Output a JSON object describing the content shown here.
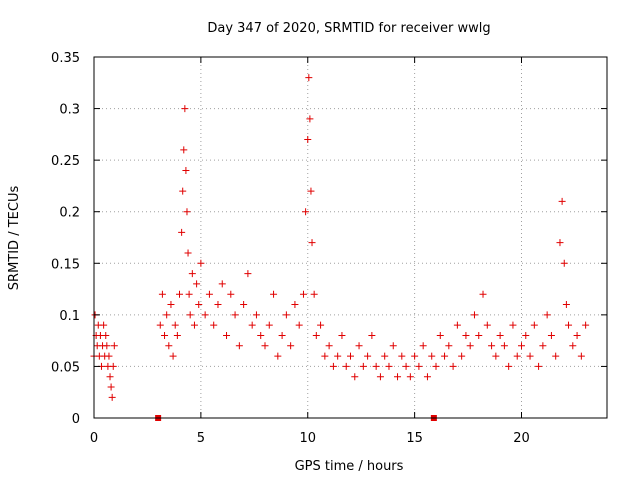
{
  "chart_data": {
    "type": "scatter",
    "title": "Day 347 of 2020, SRMTID for receiver wwlg",
    "xlabel": "GPS time / hours",
    "ylabel": "SRMTID / TECUs",
    "xlim": [
      0,
      24
    ],
    "ylim": [
      0,
      0.35
    ],
    "xticks": [
      0,
      5,
      10,
      15,
      20
    ],
    "xtick_labels": [
      "0",
      "5",
      "10",
      "15",
      "20"
    ],
    "yticks": [
      0,
      0.05,
      0.1,
      0.15,
      0.2,
      0.25,
      0.3,
      0.35
    ],
    "ytick_labels": [
      "0",
      "0.05",
      "0.1",
      "0.15",
      "0.2",
      "0.25",
      "0.3",
      "0.35"
    ],
    "grid": true,
    "marker_color": "#e00000",
    "series": [
      {
        "name": "SRMTID",
        "marker": "plus",
        "x": [
          0.0,
          0.05,
          0.1,
          0.15,
          0.2,
          0.25,
          0.3,
          0.35,
          0.4,
          0.45,
          0.5,
          0.55,
          0.6,
          0.65,
          0.7,
          0.75,
          0.8,
          0.85,
          0.9,
          0.95,
          3.1,
          3.2,
          3.3,
          3.4,
          3.5,
          3.6,
          3.7,
          3.8,
          3.9,
          4.0,
          4.1,
          4.15,
          4.2,
          4.25,
          4.3,
          4.35,
          4.4,
          4.45,
          4.5,
          4.6,
          4.7,
          4.8,
          4.9,
          5.0,
          5.2,
          5.4,
          5.6,
          5.8,
          6.0,
          6.2,
          6.4,
          6.6,
          6.8,
          7.0,
          7.2,
          7.4,
          7.6,
          7.8,
          8.0,
          8.2,
          8.4,
          8.6,
          8.8,
          9.0,
          9.2,
          9.4,
          9.6,
          9.8,
          9.9,
          10.0,
          10.05,
          10.1,
          10.15,
          10.2,
          10.3,
          10.4,
          10.6,
          10.8,
          11.0,
          11.2,
          11.4,
          11.6,
          11.8,
          12.0,
          12.2,
          12.4,
          12.6,
          12.8,
          13.0,
          13.2,
          13.4,
          13.6,
          13.8,
          14.0,
          14.2,
          14.4,
          14.6,
          14.8,
          15.0,
          15.2,
          15.4,
          15.6,
          15.8,
          16.0,
          16.2,
          16.4,
          16.6,
          16.8,
          17.0,
          17.2,
          17.4,
          17.6,
          17.8,
          18.0,
          18.2,
          18.4,
          18.6,
          18.8,
          19.0,
          19.2,
          19.4,
          19.6,
          19.8,
          20.0,
          20.2,
          20.4,
          20.6,
          20.8,
          21.0,
          21.2,
          21.4,
          21.6,
          21.8,
          21.9,
          22.0,
          22.1,
          22.2,
          22.4,
          22.6,
          22.8,
          23.0
        ],
        "y": [
          0.06,
          0.1,
          0.08,
          0.07,
          0.09,
          0.06,
          0.08,
          0.05,
          0.07,
          0.09,
          0.06,
          0.08,
          0.07,
          0.05,
          0.06,
          0.04,
          0.03,
          0.02,
          0.05,
          0.07,
          0.09,
          0.12,
          0.08,
          0.1,
          0.07,
          0.11,
          0.06,
          0.09,
          0.08,
          0.12,
          0.18,
          0.22,
          0.26,
          0.3,
          0.24,
          0.2,
          0.16,
          0.12,
          0.1,
          0.14,
          0.09,
          0.13,
          0.11,
          0.15,
          0.1,
          0.12,
          0.09,
          0.11,
          0.13,
          0.08,
          0.12,
          0.1,
          0.07,
          0.11,
          0.14,
          0.09,
          0.1,
          0.08,
          0.07,
          0.09,
          0.12,
          0.06,
          0.08,
          0.1,
          0.07,
          0.11,
          0.09,
          0.12,
          0.2,
          0.27,
          0.33,
          0.29,
          0.22,
          0.17,
          0.12,
          0.08,
          0.09,
          0.06,
          0.07,
          0.05,
          0.06,
          0.08,
          0.05,
          0.06,
          0.04,
          0.07,
          0.05,
          0.06,
          0.08,
          0.05,
          0.04,
          0.06,
          0.05,
          0.07,
          0.04,
          0.06,
          0.05,
          0.04,
          0.06,
          0.05,
          0.07,
          0.04,
          0.06,
          0.05,
          0.08,
          0.06,
          0.07,
          0.05,
          0.09,
          0.06,
          0.08,
          0.07,
          0.1,
          0.08,
          0.12,
          0.09,
          0.07,
          0.06,
          0.08,
          0.07,
          0.05,
          0.09,
          0.06,
          0.07,
          0.08,
          0.06,
          0.09,
          0.05,
          0.07,
          0.1,
          0.08,
          0.06,
          0.17,
          0.21,
          0.15,
          0.11,
          0.09,
          0.07,
          0.08,
          0.06,
          0.09
        ]
      }
    ],
    "axis_markers_x": [
      3.0,
      15.9
    ]
  }
}
